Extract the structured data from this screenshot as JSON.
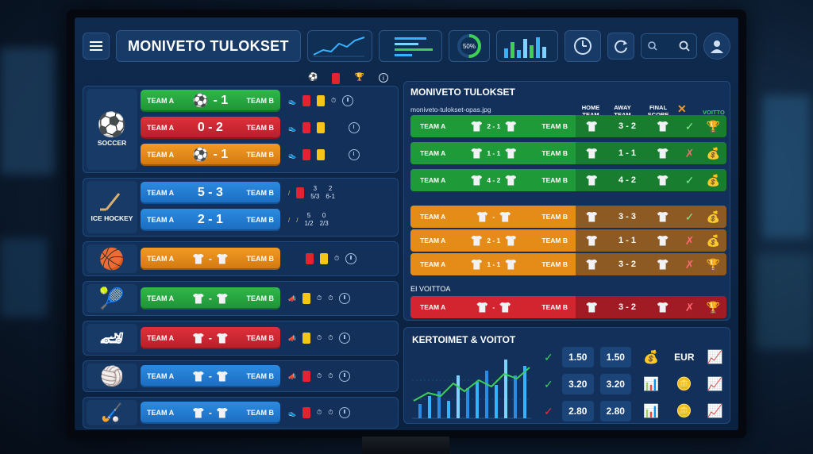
{
  "app": {
    "title": "MONIVETO TULOKSET"
  },
  "left_header_icons": [
    "soccer-ball-icon",
    "red-card-icon",
    "trophy-icon",
    "info-icon"
  ],
  "sports": [
    {
      "label": "SOCCER",
      "icon": "soccer-ball-icon"
    },
    {
      "label": "ICE HOCKEY",
      "icon": "hockey-stick-icon"
    },
    {
      "label": "",
      "icon": "basketball-icon"
    },
    {
      "label": "",
      "icon": "tennis-racket-icon"
    },
    {
      "label": "",
      "icon": "race-car-icon"
    },
    {
      "label": "",
      "icon": "volleyball-icon"
    },
    {
      "label": "",
      "icon": "field-hockey-icon"
    }
  ],
  "matches": [
    {
      "home": "TEAM A",
      "away": "TEAM B",
      "score": "- 1",
      "color": "green",
      "stats": ""
    },
    {
      "home": "TEAM A",
      "away": "TEAM B",
      "score": "0 - 2",
      "color": "red",
      "stats": ""
    },
    {
      "home": "TEAM A",
      "away": "TEAM B",
      "score": "- 1",
      "color": "orange",
      "stats": ""
    },
    {
      "home": "TEAM A",
      "away": "TEAM B",
      "score": "5 - 3",
      "color": "blue",
      "stats_a": "3",
      "stats_a2": "5/3",
      "stats_b": "2",
      "stats_b2": "6-1"
    },
    {
      "home": "TEAM A",
      "away": "TEAM B",
      "score": "2 - 1",
      "color": "blue",
      "stats_a": "5",
      "stats_a2": "1/2",
      "stats_b": "0",
      "stats_b2": "2/3"
    },
    {
      "home": "TEAM A",
      "away": "TEAM B",
      "score": "-",
      "color": "orange"
    },
    {
      "home": "TEAM A",
      "away": "TEAM B",
      "score": "-",
      "color": "green"
    },
    {
      "home": "TEAM A",
      "away": "TEAM B",
      "score": "-",
      "color": "red"
    },
    {
      "home": "TEAM A",
      "away": "TEAM B",
      "score": "-",
      "color": "blue"
    },
    {
      "home": "TEAM A",
      "away": "TEAM B",
      "score": "-",
      "color": "blue"
    }
  ],
  "results": {
    "title": "MONIVETO TULOKSET",
    "subtitle": "moniveto-tulokset-opas.jpg",
    "col_home": "HOME TEAM",
    "col_away": "AWAY TEAM",
    "col_final": "FINAL SCORE",
    "col_win": "VOITTO",
    "lost_label": "EI VOITTOA",
    "rows": [
      {
        "home": "TEAM A",
        "away": "TEAM B",
        "score": "2 - 1",
        "final": "3 - 2",
        "color": "green",
        "mark": "✓",
        "reward": "trophy"
      },
      {
        "home": "TEAM A",
        "away": "TEAM B",
        "score": "1 - 1",
        "final": "1 - 1",
        "color": "green",
        "mark": "✗",
        "reward": "money"
      },
      {
        "home": "TEAM A",
        "away": "TEAM B",
        "score": "4 - 2",
        "final": "4 - 2",
        "color": "green",
        "mark": "✓",
        "reward": "money"
      },
      {
        "home": "TEAM A",
        "away": "TEAM B",
        "score": "-",
        "final": "3 - 3",
        "color": "orange",
        "mark": "✓",
        "reward": "money"
      },
      {
        "home": "TEAM A",
        "away": "TEAM B",
        "score": "2 - 1",
        "final": "1 - 1",
        "color": "orange",
        "mark": "✗",
        "reward": "money"
      },
      {
        "home": "TEAM A",
        "away": "TEAM B",
        "score": "1 - 1",
        "final": "3 - 2",
        "color": "orange",
        "mark": "✗",
        "reward": "trophy"
      },
      {
        "home": "TEAM A",
        "away": "TEAM B",
        "score": "-",
        "final": "3 - 2",
        "color": "red",
        "mark": "✗",
        "reward": "trophy"
      }
    ]
  },
  "odds": {
    "title": "KERTOIMET & VOITOT",
    "currency": "EUR",
    "rows": [
      {
        "mark": "✓",
        "a": "1.50",
        "b": "1.50"
      },
      {
        "mark": "✓",
        "a": "3.20",
        "b": "3.20"
      },
      {
        "mark": "✓",
        "a": "2.80",
        "b": "2.80"
      }
    ]
  },
  "topbar": {
    "donut_label": "50%"
  },
  "colors": {
    "green": "#2fb84a",
    "red": "#e0303c",
    "orange": "#f29a24",
    "blue": "#2b8be0",
    "bg": "#0f2a4d"
  }
}
